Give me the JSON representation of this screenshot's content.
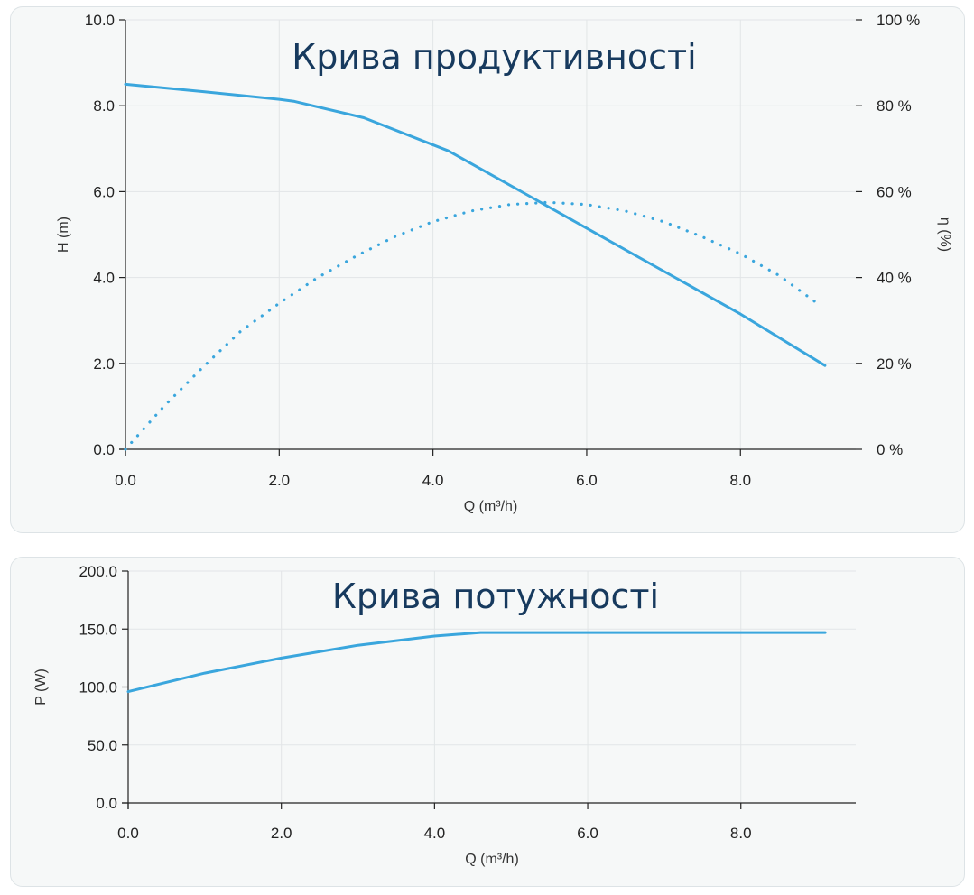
{
  "chart_data": [
    {
      "type": "line",
      "title": "Крива продуктивності",
      "xlabel": "Q (m³/h)",
      "ylabel": "H (m)",
      "y2label": "η (%)",
      "xlim": [
        0,
        9.5
      ],
      "ylim": [
        0,
        10
      ],
      "y2lim": [
        0,
        100
      ],
      "xticks": [
        "0.0",
        "2.0",
        "4.0",
        "6.0",
        "8.0"
      ],
      "yticks": [
        "0.0",
        "2.0",
        "4.0",
        "6.0",
        "8.0",
        "10.0"
      ],
      "y2ticks": [
        "0 %",
        "20 %",
        "40 %",
        "60 %",
        "80 %",
        "100 %"
      ],
      "grid": true,
      "series": [
        {
          "axis": "left",
          "style": "solid",
          "color": "#3aa6dd",
          "x": [
            0.0,
            1.0,
            2.0,
            2.2,
            3.1,
            4.2,
            5.3,
            6.0,
            7.0,
            8.0,
            9.1
          ],
          "y": [
            8.5,
            8.33,
            8.15,
            8.1,
            7.72,
            6.95,
            5.85,
            5.15,
            4.15,
            3.15,
            1.95
          ]
        },
        {
          "axis": "right",
          "style": "dotted",
          "color": "#3aa6dd",
          "x": [
            0.0,
            0.5,
            1.0,
            1.5,
            2.0,
            2.5,
            3.0,
            3.5,
            4.0,
            4.5,
            5.0,
            5.5,
            6.0,
            6.5,
            7.0,
            7.5,
            8.0,
            8.5,
            9.0
          ],
          "y": [
            0,
            10,
            19,
            27.5,
            34,
            40,
            45,
            49.5,
            53,
            55.5,
            57,
            57.5,
            57,
            55.5,
            53,
            49.5,
            45.5,
            40.5,
            34
          ]
        }
      ]
    },
    {
      "type": "line",
      "title": "Крива потужності",
      "xlabel": "Q (m³/h)",
      "ylabel": "P (W)",
      "xlim": [
        0,
        9.5
      ],
      "ylim": [
        0,
        200
      ],
      "xticks": [
        "0.0",
        "2.0",
        "4.0",
        "6.0",
        "8.0"
      ],
      "yticks": [
        "0.0",
        "50.0",
        "100.0",
        "150.0",
        "200.0"
      ],
      "grid": true,
      "series": [
        {
          "style": "solid",
          "color": "#3aa6dd",
          "x": [
            0.0,
            1.0,
            2.0,
            3.0,
            4.0,
            4.6,
            5.0,
            6.0,
            7.0,
            8.0,
            9.1
          ],
          "y": [
            96,
            112,
            125,
            136,
            144,
            147,
            147,
            147,
            147,
            147,
            147
          ]
        }
      ]
    }
  ]
}
